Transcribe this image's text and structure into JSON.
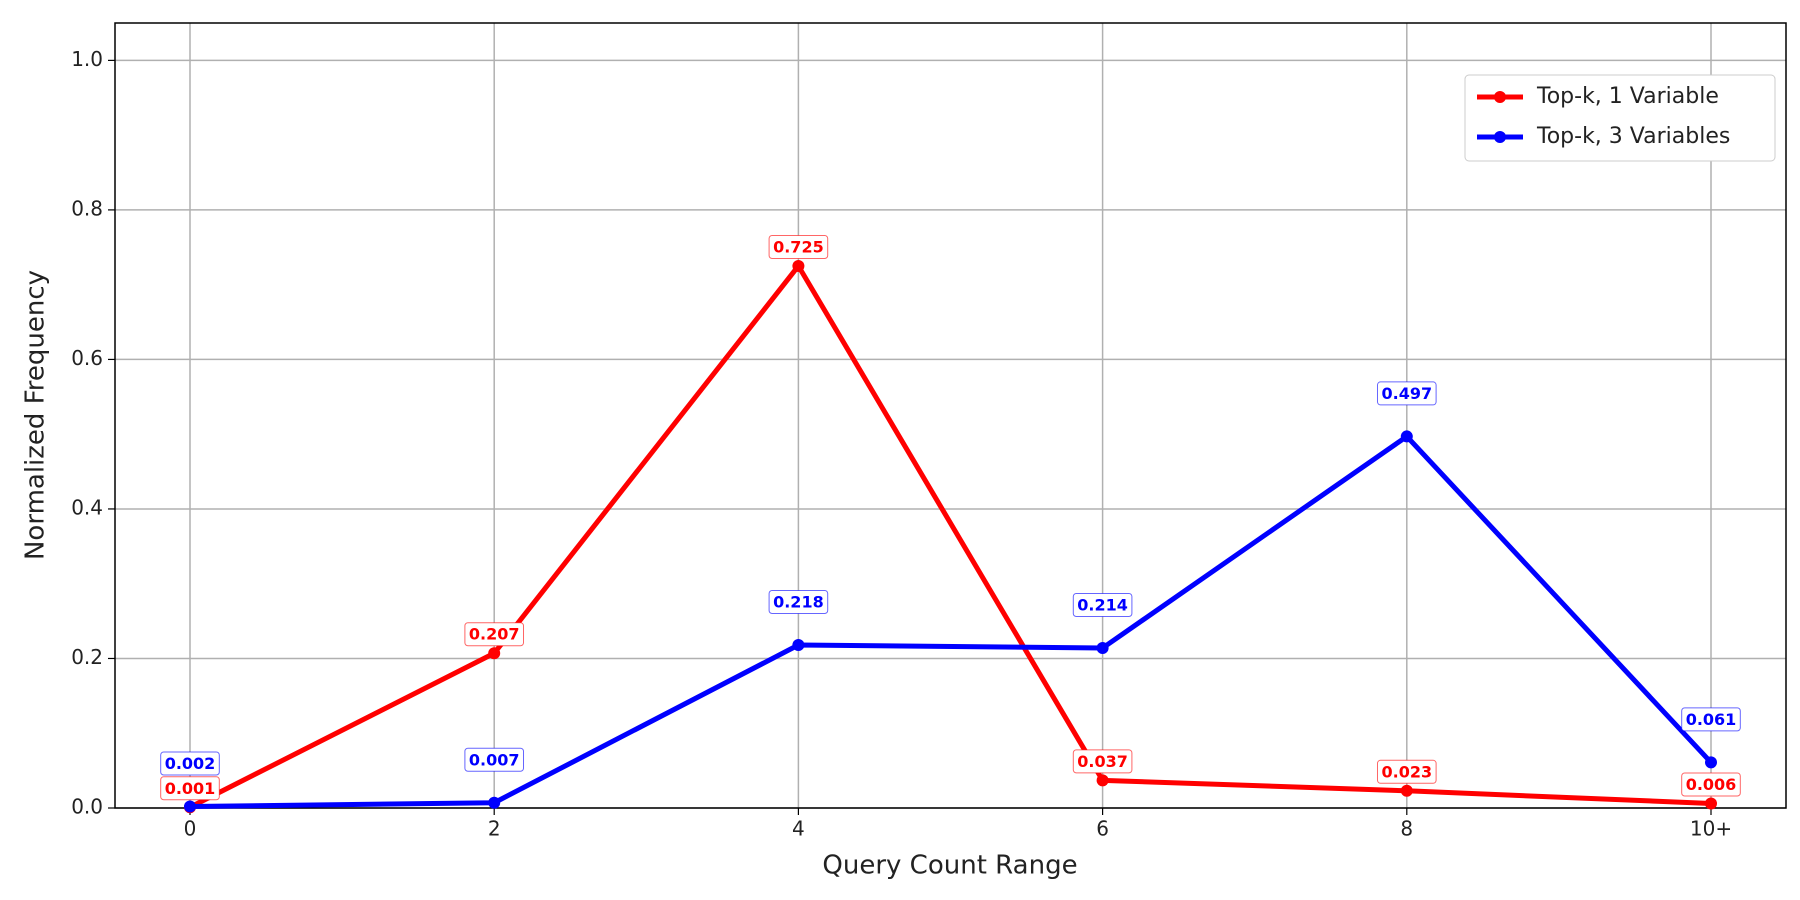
{
  "chart_data": {
    "type": "line",
    "xlabel": "Query Count Range",
    "ylabel": "Normalized Frequency",
    "categories": [
      "0",
      "2",
      "4",
      "6",
      "8",
      "10+"
    ],
    "series": [
      {
        "name": "Top-k, 1 Variable",
        "color": "#ff0000",
        "values": [
          0.001,
          0.207,
          0.725,
          0.037,
          0.023,
          0.006
        ]
      },
      {
        "name": "Top-k, 3 Variables",
        "color": "#0000ff",
        "values": [
          0.002,
          0.007,
          0.218,
          0.214,
          0.497,
          0.061
        ]
      }
    ],
    "ylim": [
      0,
      1.05
    ],
    "yticks": [
      {
        "value": 0,
        "label": "0.0"
      },
      0.2,
      0.4,
      0.6,
      0.8,
      {
        "value": 1,
        "label": "1.0"
      }
    ],
    "grid": true,
    "legend": "upper right"
  }
}
